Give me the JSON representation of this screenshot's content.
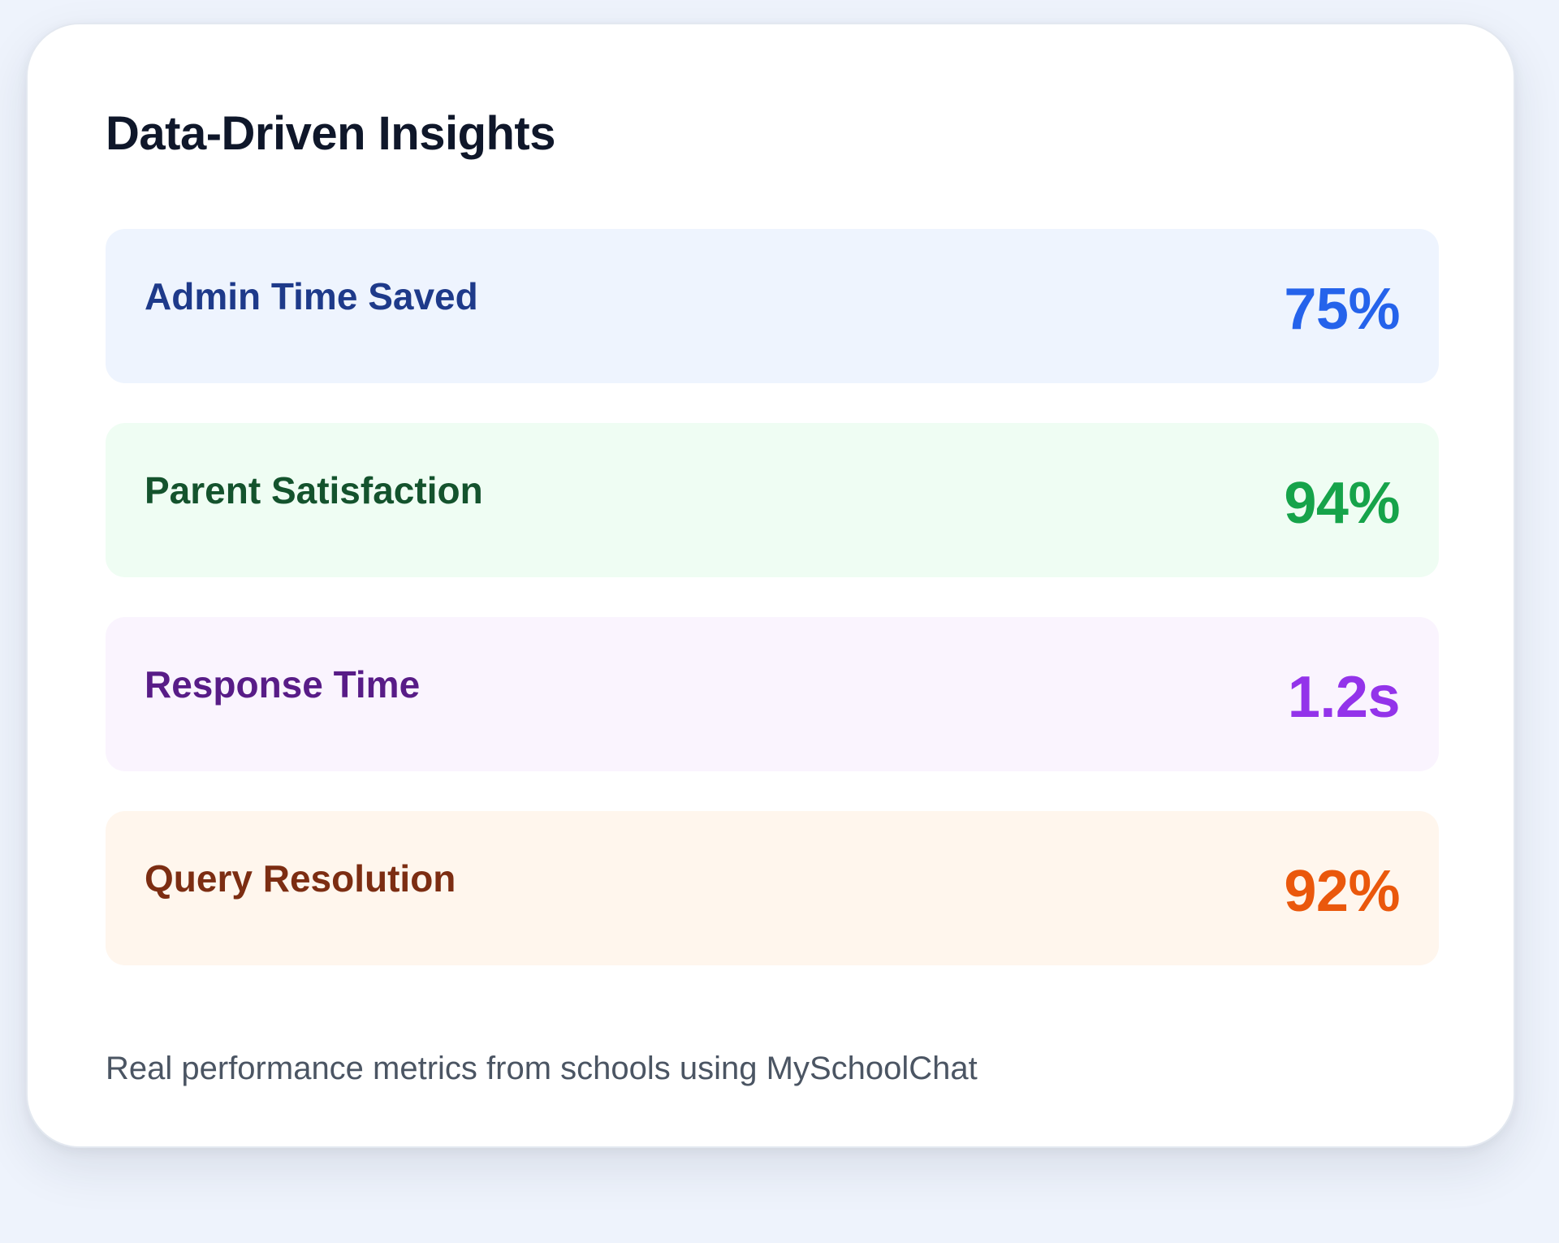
{
  "card": {
    "title": "Data-Driven Insights",
    "footnote": "Real performance metrics from schools using MySchoolChat"
  },
  "metrics": [
    {
      "label": "Admin Time Saved",
      "value": "75%",
      "background": "#eef4fe",
      "label_color": "#1e3a8a",
      "value_color": "#2563eb"
    },
    {
      "label": "Parent Satisfaction",
      "value": "94%",
      "background": "#effdf3",
      "label_color": "#14532d",
      "value_color": "#16a34a"
    },
    {
      "label": "Response Time",
      "value": "1.2s",
      "background": "#faf4fe",
      "label_color": "#581c87",
      "value_color": "#9333ea"
    },
    {
      "label": "Query Resolution",
      "value": "92%",
      "background": "#fff6ed",
      "label_color": "#7c2d12",
      "value_color": "#ea580c"
    }
  ]
}
